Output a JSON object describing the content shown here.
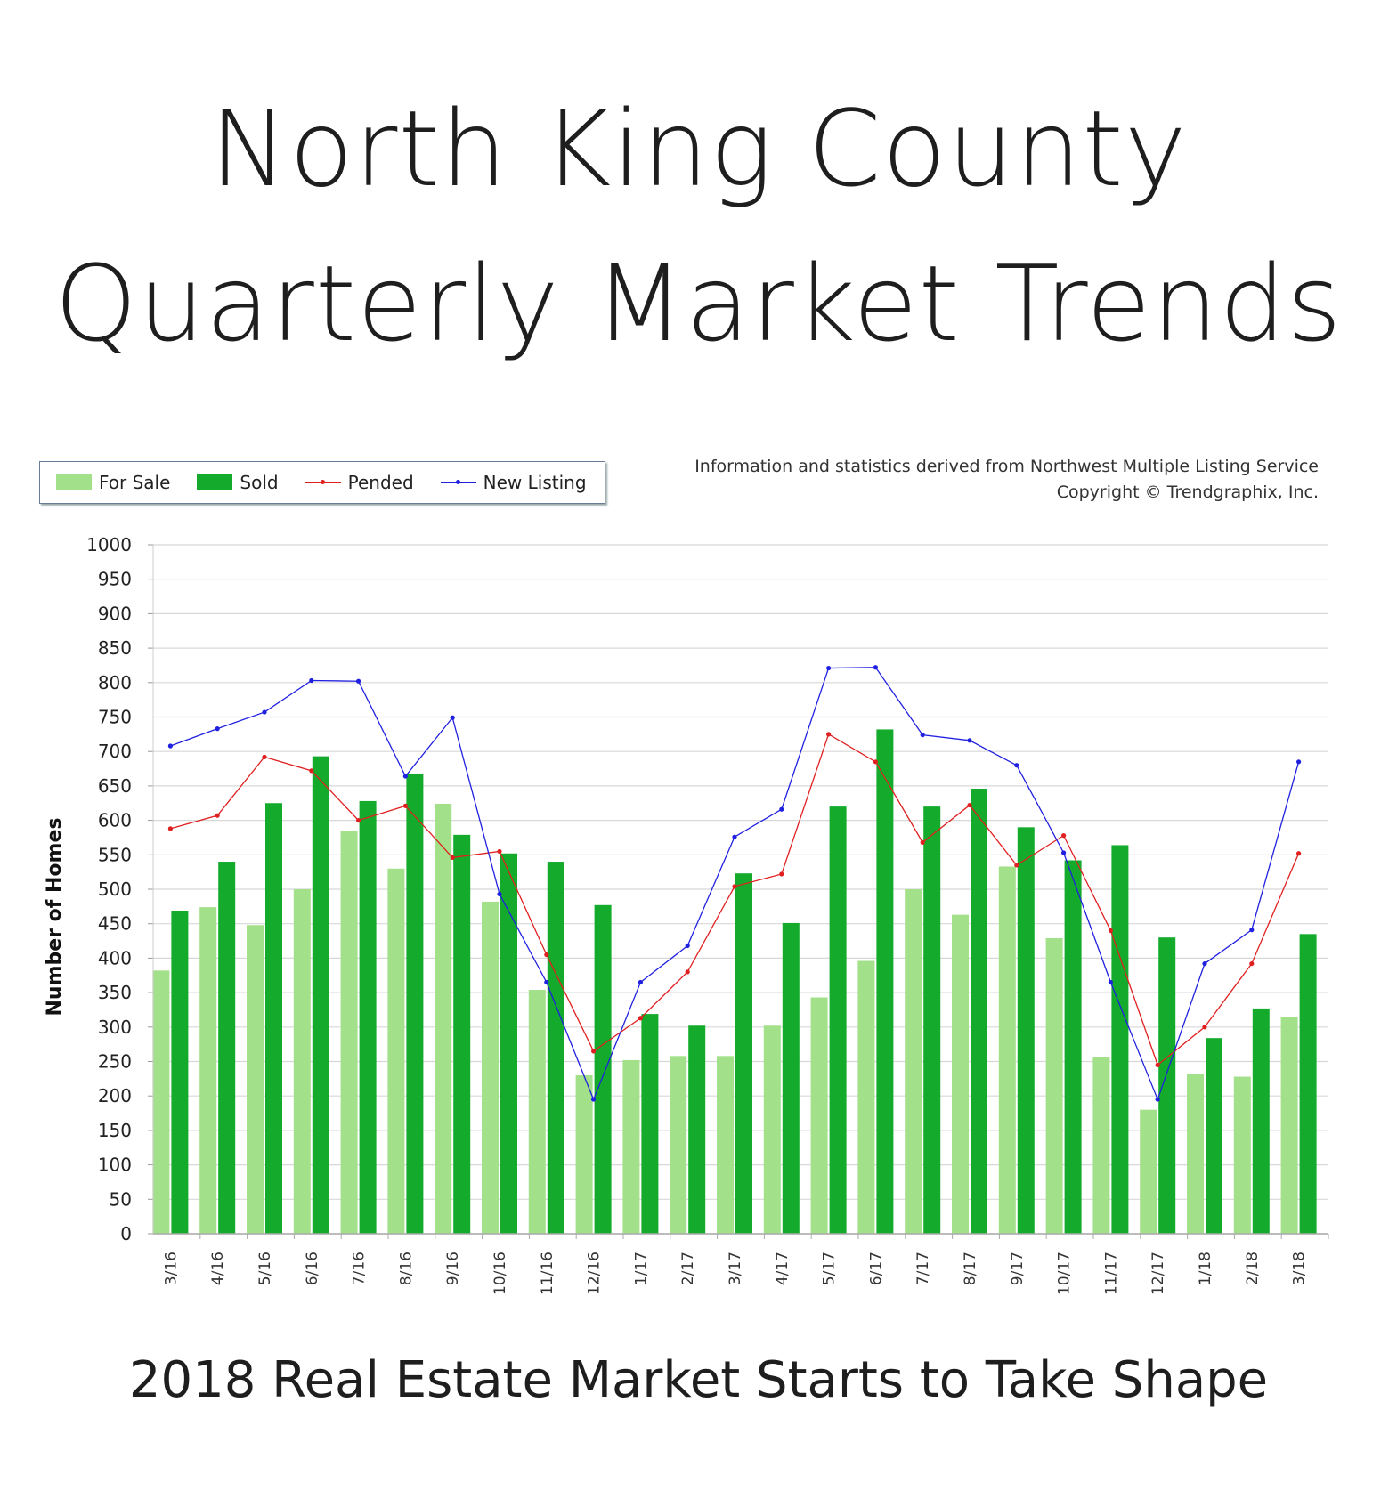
{
  "title_line1": "North King County",
  "title_line2": "Quarterly Market Trends",
  "subtitle": "2018 Real Estate Market Starts to Take Shape",
  "source_line1": "Information and statistics derived from Northwest Multiple Listing Service",
  "source_line2": "Copyright © Trendgraphix, Inc.",
  "colors": {
    "for_sale": "#a3e08a",
    "sold": "#14ab2c",
    "pended": "#e02020",
    "new_listing": "#2020e0",
    "grid": "#d8d8d8"
  },
  "chart_data": {
    "type": "bar",
    "ylabel": "Number of Homes",
    "ylim": [
      0,
      1000
    ],
    "yticks": [
      0,
      50,
      100,
      150,
      200,
      250,
      300,
      350,
      400,
      450,
      500,
      550,
      600,
      650,
      700,
      750,
      800,
      850,
      900,
      950,
      1000
    ],
    "grid": true,
    "legend_position": "top-left",
    "categories": [
      "3/16",
      "4/16",
      "5/16",
      "6/16",
      "7/16",
      "8/16",
      "9/16",
      "10/16",
      "11/16",
      "12/16",
      "1/17",
      "2/17",
      "3/17",
      "4/17",
      "5/17",
      "6/17",
      "7/17",
      "8/17",
      "9/17",
      "10/17",
      "11/17",
      "12/17",
      "1/18",
      "2/18",
      "3/18"
    ],
    "series": [
      {
        "name": "For Sale",
        "kind": "bar",
        "values": [
          382,
          474,
          448,
          500,
          585,
          530,
          624,
          482,
          354,
          230,
          252,
          258,
          258,
          302,
          343,
          396,
          500,
          463,
          533,
          429,
          257,
          180,
          232,
          228,
          314
        ]
      },
      {
        "name": "Sold",
        "kind": "bar",
        "values": [
          469,
          540,
          625,
          693,
          628,
          668,
          579,
          552,
          540,
          477,
          319,
          302,
          523,
          451,
          620,
          732,
          620,
          646,
          590,
          542,
          564,
          430,
          284,
          327,
          435
        ]
      },
      {
        "name": "Pended",
        "kind": "line",
        "values": [
          588,
          607,
          692,
          672,
          600,
          621,
          546,
          555,
          405,
          265,
          313,
          380,
          504,
          522,
          725,
          685,
          568,
          622,
          535,
          578,
          440,
          245,
          300,
          392,
          552
        ]
      },
      {
        "name": "New Listing",
        "kind": "line",
        "values": [
          708,
          733,
          757,
          803,
          802,
          664,
          749,
          493,
          365,
          195,
          365,
          418,
          576,
          616,
          821,
          822,
          724,
          716,
          680,
          553,
          365,
          195,
          392,
          441,
          685
        ]
      }
    ]
  }
}
